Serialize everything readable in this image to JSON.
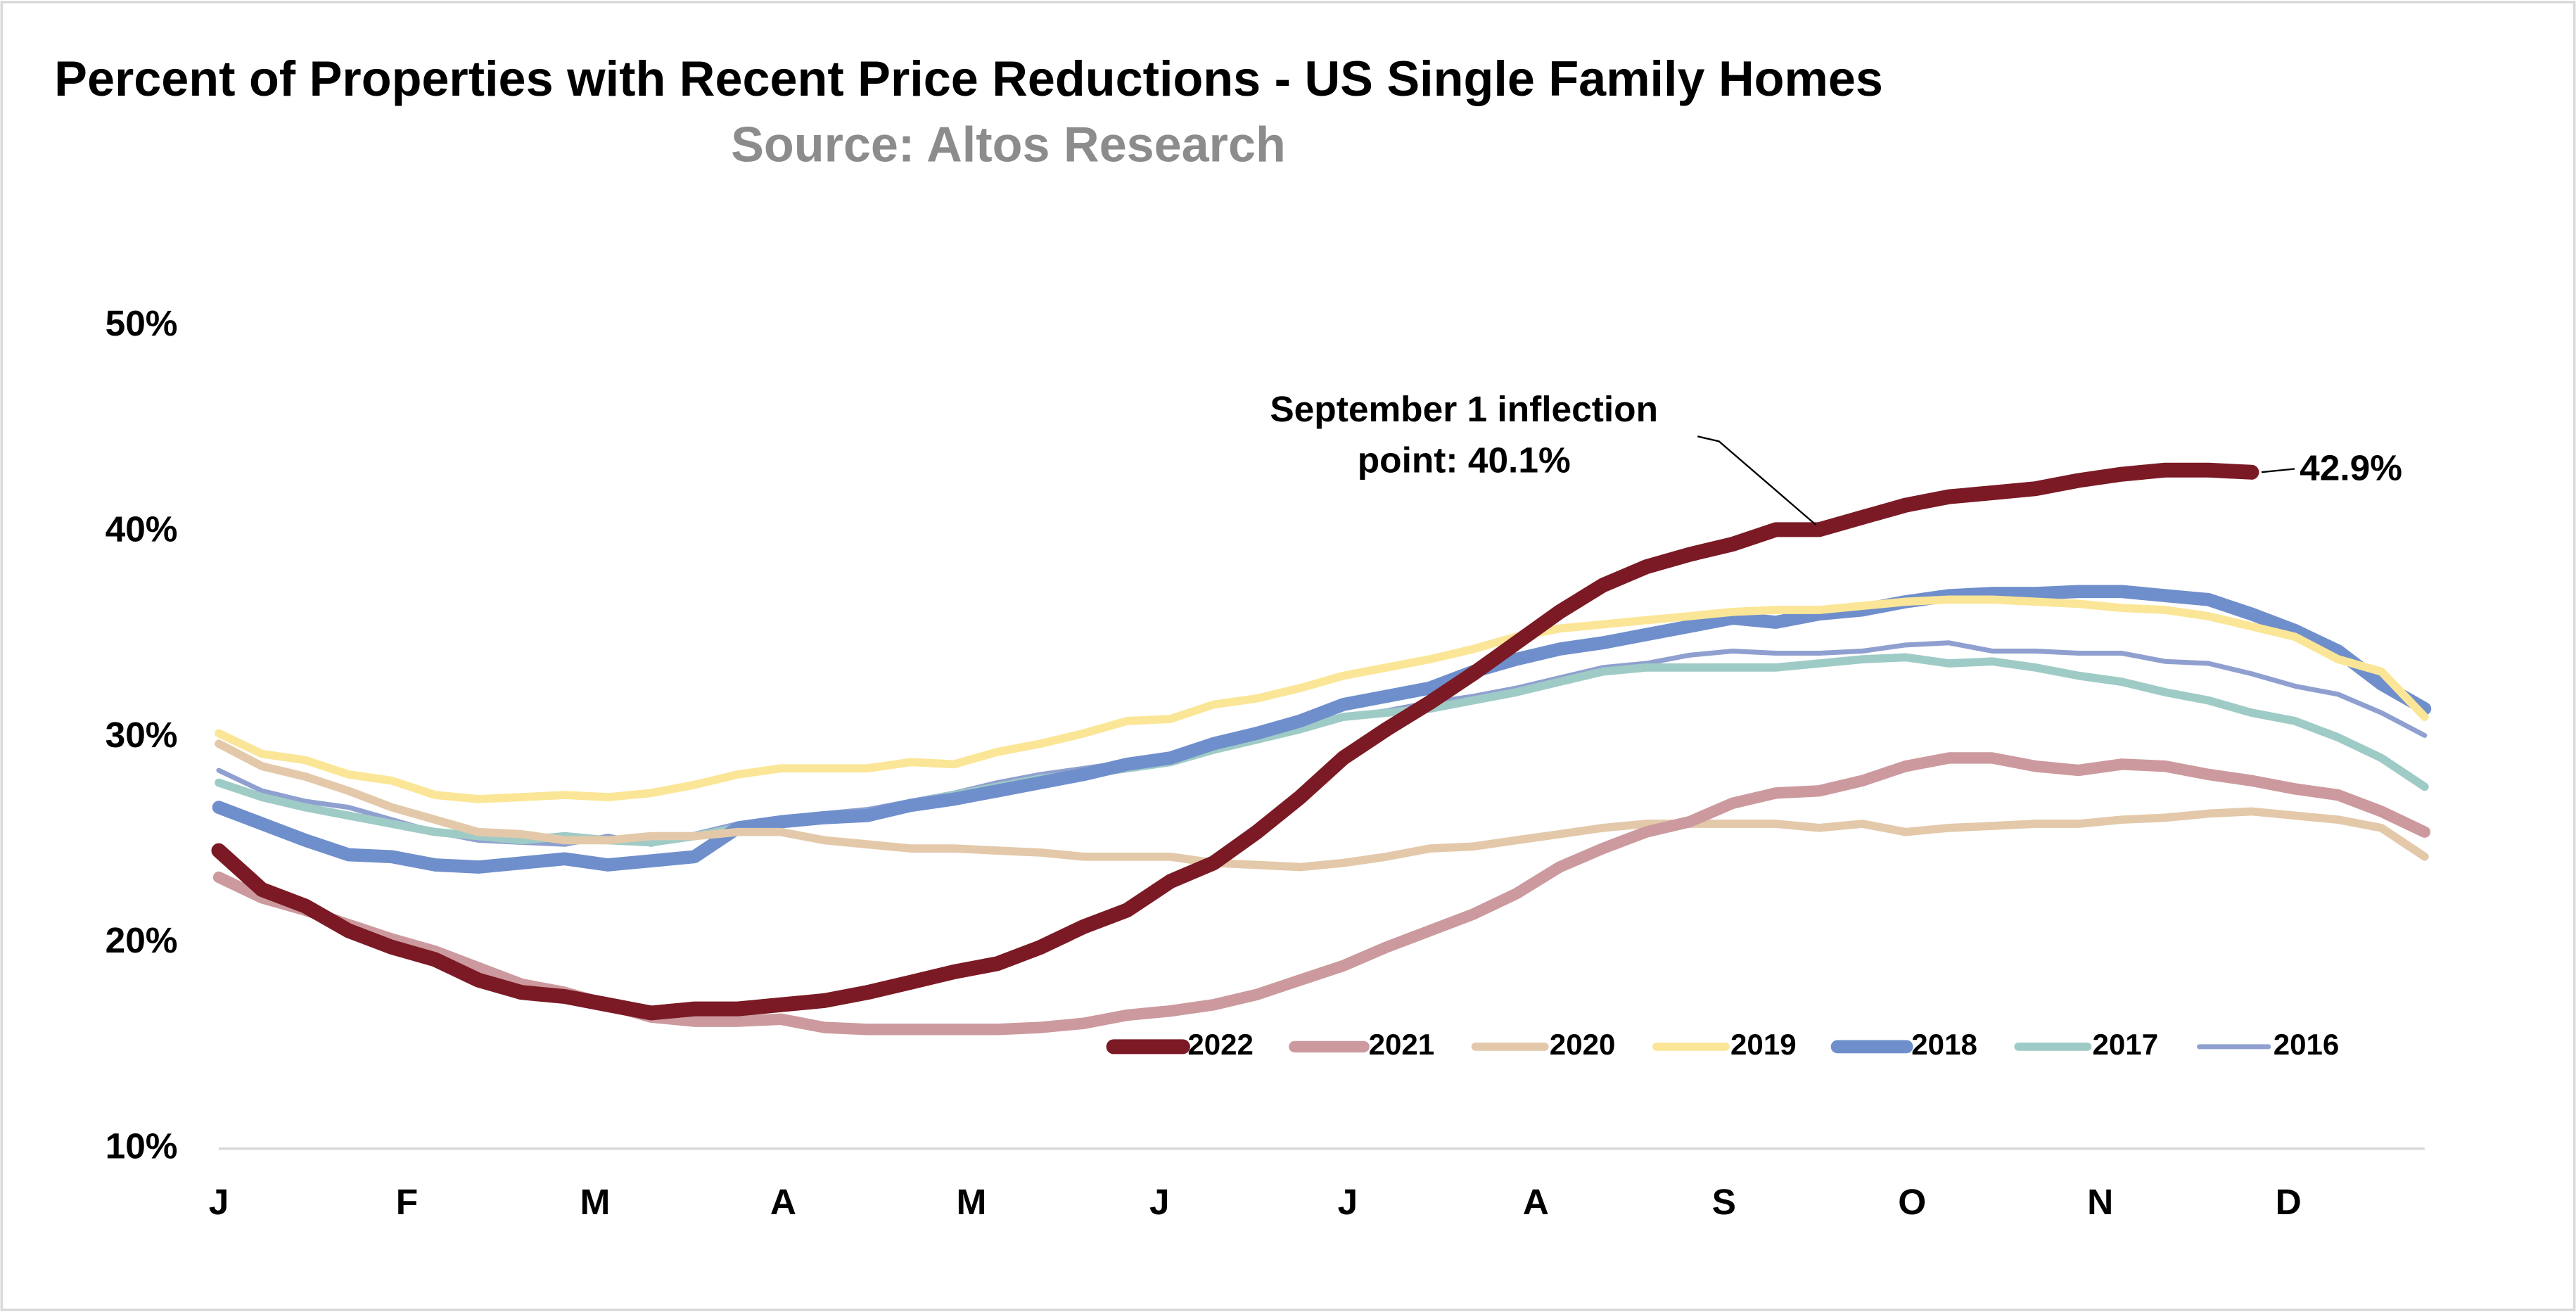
{
  "chart_data": {
    "type": "line",
    "title": "Percent of Properties with Recent Price Reductions - US Single Family Homes",
    "subtitle": "Source: Altos Research",
    "x": [
      0,
      1,
      2,
      3,
      4,
      5,
      6,
      7,
      8,
      9,
      10,
      11,
      12,
      13,
      14,
      15,
      16,
      17,
      18,
      19,
      20,
      21,
      22,
      23,
      24,
      25,
      26,
      27,
      28,
      29,
      30,
      31,
      32,
      33,
      34,
      35,
      36,
      37,
      38,
      39,
      40,
      41,
      42,
      43,
      44,
      45,
      46,
      47,
      48,
      49,
      50,
      51
    ],
    "xlim": [
      0,
      51
    ],
    "xticks": [
      {
        "value": 0,
        "label": "J"
      },
      {
        "value": 4.35,
        "label": "F"
      },
      {
        "value": 8.7,
        "label": "M"
      },
      {
        "value": 13.05,
        "label": "A"
      },
      {
        "value": 17.4,
        "label": "M"
      },
      {
        "value": 21.75,
        "label": "J"
      },
      {
        "value": 26.1,
        "label": "J"
      },
      {
        "value": 30.45,
        "label": "A"
      },
      {
        "value": 34.8,
        "label": "S"
      },
      {
        "value": 39.15,
        "label": "O"
      },
      {
        "value": 43.5,
        "label": "N"
      },
      {
        "value": 47.85,
        "label": "D"
      }
    ],
    "ylim": [
      10,
      50
    ],
    "yticks": [
      {
        "value": 10,
        "label": "10%"
      },
      {
        "value": 20,
        "label": "20%"
      },
      {
        "value": 30,
        "label": "30%"
      },
      {
        "value": 40,
        "label": "40%"
      },
      {
        "value": 50,
        "label": "50%"
      }
    ],
    "grid": false,
    "legend": "bottom-right",
    "series": [
      {
        "name": "2022",
        "color": "#7b1a24",
        "values": [
          24.5,
          22.6,
          21.8,
          20.6,
          19.8,
          19.2,
          18.2,
          17.6,
          17.4,
          17.0,
          16.6,
          16.8,
          16.8,
          17.0,
          17.2,
          17.6,
          18.1,
          18.6,
          19.0,
          19.8,
          20.8,
          21.6,
          23.0,
          23.9,
          25.4,
          27.1,
          29.0,
          30.4,
          31.7,
          33.1,
          34.6,
          36.1,
          37.4,
          38.3,
          38.9,
          39.4,
          40.1,
          40.1,
          40.7,
          41.3,
          41.7,
          41.9,
          42.1,
          42.5,
          42.8,
          43.0,
          43.0,
          42.9,
          null,
          null,
          null,
          null
        ]
      },
      {
        "name": "2021",
        "color": "#cc9a9e",
        "values": [
          23.2,
          22.2,
          21.6,
          20.9,
          20.2,
          19.6,
          18.8,
          18.0,
          17.6,
          17.0,
          16.4,
          16.2,
          16.2,
          16.3,
          15.9,
          15.8,
          15.8,
          15.8,
          15.8,
          15.9,
          16.1,
          16.5,
          16.7,
          17.0,
          17.5,
          18.2,
          18.9,
          19.8,
          20.6,
          21.4,
          22.4,
          23.7,
          24.6,
          25.4,
          25.9,
          26.8,
          27.3,
          27.4,
          27.9,
          28.6,
          29.0,
          29.0,
          28.6,
          28.4,
          28.7,
          28.6,
          28.2,
          27.9,
          27.5,
          27.2,
          26.4,
          25.4
        ]
      },
      {
        "name": "2020",
        "color": "#e3c9aa",
        "values": [
          29.7,
          28.6,
          28.1,
          27.4,
          26.6,
          26.0,
          25.4,
          25.3,
          25.0,
          25.0,
          25.2,
          25.2,
          25.4,
          25.4,
          25.0,
          24.8,
          24.6,
          24.6,
          24.5,
          24.4,
          24.2,
          24.2,
          24.2,
          23.9,
          23.8,
          23.7,
          23.9,
          24.2,
          24.6,
          24.7,
          25.0,
          25.3,
          25.6,
          25.8,
          25.8,
          25.8,
          25.8,
          25.6,
          25.8,
          25.4,
          25.6,
          25.7,
          25.8,
          25.8,
          26.0,
          26.1,
          26.3,
          26.4,
          26.2,
          26.0,
          25.6,
          24.2
        ]
      },
      {
        "name": "2019",
        "color": "#fbe697",
        "values": [
          30.2,
          29.2,
          28.9,
          28.2,
          27.9,
          27.2,
          27.0,
          27.1,
          27.2,
          27.1,
          27.3,
          27.7,
          28.2,
          28.5,
          28.5,
          28.5,
          28.8,
          28.7,
          29.3,
          29.7,
          30.2,
          30.8,
          30.9,
          31.6,
          31.9,
          32.4,
          33.0,
          33.4,
          33.8,
          34.3,
          34.9,
          35.3,
          35.5,
          35.7,
          35.9,
          36.1,
          36.2,
          36.2,
          36.4,
          36.6,
          36.7,
          36.7,
          36.6,
          36.5,
          36.3,
          36.2,
          35.9,
          35.4,
          34.9,
          33.8,
          33.2,
          31.0
        ]
      },
      {
        "name": "2018",
        "color": "#6f8fcc",
        "values": [
          26.6,
          25.8,
          25.0,
          24.3,
          24.2,
          23.8,
          23.7,
          23.9,
          24.1,
          23.8,
          24.0,
          24.2,
          25.6,
          25.9,
          26.1,
          26.2,
          26.7,
          27.0,
          27.4,
          27.8,
          28.2,
          28.7,
          29.0,
          29.7,
          30.2,
          30.8,
          31.6,
          32.0,
          32.4,
          33.2,
          33.8,
          34.3,
          34.6,
          35.0,
          35.4,
          35.8,
          35.6,
          36.0,
          36.2,
          36.6,
          36.9,
          37.0,
          37.0,
          37.1,
          37.1,
          36.9,
          36.7,
          36.0,
          35.2,
          34.2,
          32.6,
          31.4
        ]
      },
      {
        "name": "2017",
        "color": "#9fcbc6",
        "values": [
          27.8,
          27.1,
          26.6,
          26.2,
          25.8,
          25.4,
          25.2,
          25.0,
          25.2,
          25.0,
          24.9,
          25.2,
          25.6,
          25.8,
          26.0,
          26.3,
          26.8,
          27.2,
          27.6,
          28.0,
          28.2,
          28.5,
          28.8,
          29.4,
          29.9,
          30.4,
          31.0,
          31.2,
          31.4,
          31.8,
          32.2,
          32.7,
          33.2,
          33.4,
          33.4,
          33.4,
          33.4,
          33.6,
          33.8,
          33.9,
          33.6,
          33.7,
          33.4,
          33.0,
          32.7,
          32.2,
          31.8,
          31.2,
          30.8,
          30.0,
          29.0,
          27.6
        ]
      },
      {
        "name": "2016",
        "color": "#8fa0d0",
        "values": [
          28.4,
          27.4,
          26.9,
          26.6,
          26.0,
          25.4,
          25.0,
          24.9,
          24.8,
          25.2,
          24.8,
          25.3,
          25.8,
          26.1,
          26.3,
          26.5,
          26.9,
          27.3,
          27.8,
          28.2,
          28.5,
          28.8,
          29.0,
          29.7,
          30.2,
          30.6,
          31.0,
          31.3,
          31.7,
          32.0,
          32.4,
          32.9,
          33.4,
          33.6,
          34.0,
          34.2,
          34.1,
          34.1,
          34.2,
          34.5,
          34.6,
          34.2,
          34.2,
          34.1,
          34.1,
          33.7,
          33.6,
          33.1,
          32.5,
          32.1,
          31.2,
          30.1
        ]
      }
    ],
    "annotations": [
      {
        "text": [
          "September 1 inflection",
          "point: 40.1%"
        ]
      },
      {
        "text": "42.9%"
      }
    ]
  }
}
